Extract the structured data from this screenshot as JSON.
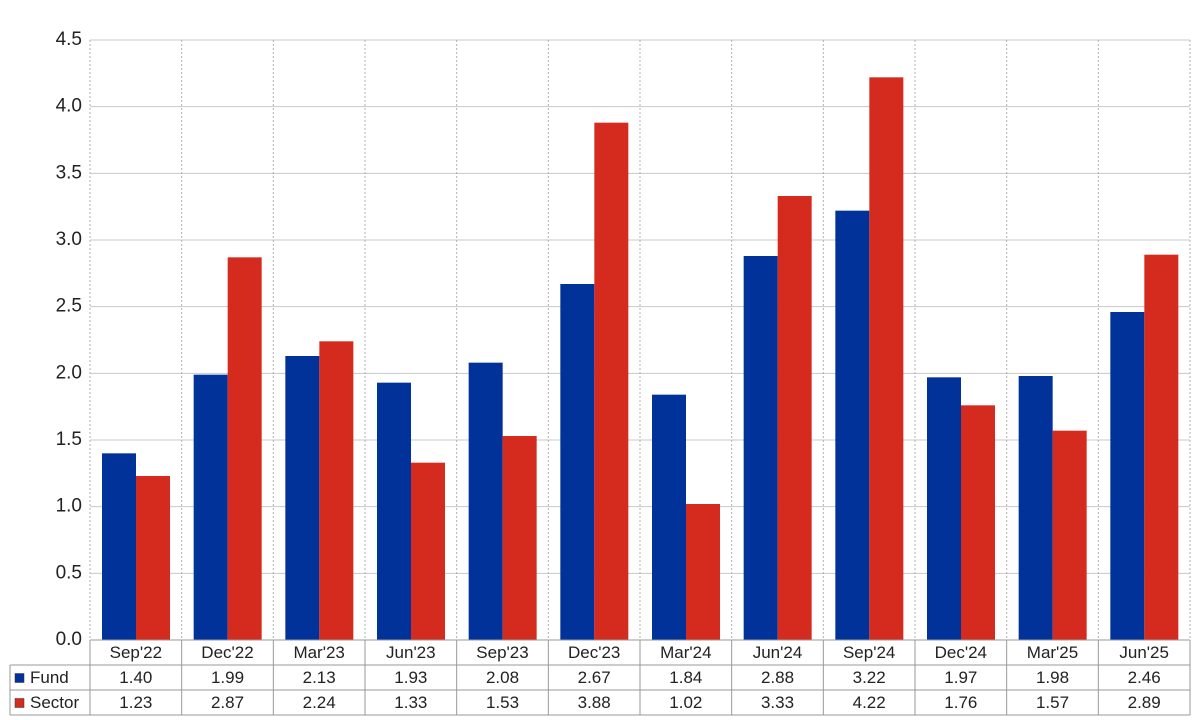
{
  "chart_data": {
    "type": "bar",
    "categories": [
      "Sep'22",
      "Dec'22",
      "Mar'23",
      "Jun'23",
      "Sep'23",
      "Dec'23",
      "Mar'24",
      "Jun'24",
      "Sep'24",
      "Dec'24",
      "Mar'25",
      "Jun'25"
    ],
    "series": [
      {
        "name": "Fund",
        "color": "#003299",
        "values": [
          1.4,
          1.99,
          2.13,
          1.93,
          2.08,
          2.67,
          1.84,
          2.88,
          3.22,
          1.97,
          1.98,
          2.46
        ],
        "value_labels": [
          "1.40",
          "1.99",
          "2.13",
          "1.93",
          "2.08",
          "2.67",
          "1.84",
          "2.88",
          "3.22",
          "1.97",
          "1.98",
          "2.46"
        ]
      },
      {
        "name": "Sector",
        "color": "#d52b1e",
        "values": [
          1.23,
          2.87,
          2.24,
          1.33,
          1.53,
          3.88,
          1.02,
          3.33,
          4.22,
          1.76,
          1.57,
          2.89
        ],
        "value_labels": [
          "1.23",
          "2.87",
          "2.24",
          "1.33",
          "1.53",
          "3.88",
          "1.02",
          "3.33",
          "4.22",
          "1.76",
          "1.57",
          "2.89"
        ]
      }
    ],
    "ylim": [
      0,
      4.5
    ],
    "yticks": [
      {
        "value": 0,
        "label": "0.0"
      },
      0.5,
      {
        "value": 1,
        "label": "1.0"
      },
      1.5,
      {
        "value": 2,
        "label": "2.0"
      },
      2.5,
      {
        "value": 3,
        "label": "3.0"
      },
      3.5,
      {
        "value": 4,
        "label": "4.0"
      },
      4.5
    ],
    "grid": true
  }
}
